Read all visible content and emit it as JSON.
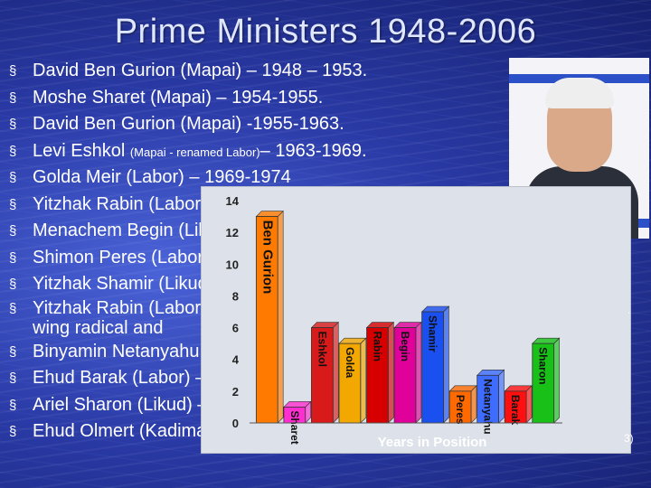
{
  "slide": {
    "title": "Prime Ministers 1948-2006",
    "bullet_marker": "§",
    "bullets": [
      {
        "main": "David Ben Gurion (Mapai) – 1948 – 1953.",
        "small": "",
        "after": ""
      },
      {
        "main": "Moshe Sharet (Mapai) – 1954-1955.",
        "small": "",
        "after": ""
      },
      {
        "main": "David Ben Gurion (Mapai) -1955-1963.",
        "small": "",
        "after": ""
      },
      {
        "main": "Levi Eshkol ",
        "small": "(Mapai - renamed Labor)",
        "after": "– 1963-1969."
      },
      {
        "main": "Golda Meir (Labor) – 1969-1974",
        "small": "",
        "after": ""
      },
      {
        "main": "Yitzhak Rabin (Labor) – 1974-1977",
        "small": "",
        "after": ""
      },
      {
        "main": "Menachem Begin (Likud) – 1977-1983",
        "small": "",
        "after": ""
      },
      {
        "main": "Shimon Peres (Labor) – 1984-1986",
        "small": "",
        "after": ""
      },
      {
        "main": "Yitzhak Shamir (Likud) – 1986-1992",
        "small": "",
        "after": ""
      },
      {
        "main": "Yitzhak Rabin (Labor) – 1992-1995 – assassinated by a right",
        "small": "",
        "after": ""
      },
      {
        "main": "Binyamin Netanyahu (Likud) – 1996-1999",
        "small": "",
        "after": ""
      },
      {
        "main": "Ehud Barak (Labor) – 1999-2001",
        "small": "",
        "after": ""
      },
      {
        "main": "Ariel Sharon (Likud) – 2001-2006",
        "small": "",
        "after": ""
      },
      {
        "main": "Ehud Olmert (Kadima) – 2006",
        "small": "",
        "after": ""
      }
    ],
    "bullet10_continuation": "wing radical and",
    "photo_caption": "Ariel Sharon portrait",
    "right_edge_fragment": ".",
    "right_edge_fragment2": "3)"
  },
  "chart_data": {
    "type": "bar",
    "categories": [
      "Ben Gurion",
      "Sharet",
      "Eshkol",
      "Golda",
      "Rabin",
      "Begin",
      "Shamir",
      "Peres",
      "Netanyahu",
      "Barak",
      "Sharon"
    ],
    "values": [
      13,
      1,
      6,
      5,
      6,
      6,
      7,
      2,
      3,
      2,
      5
    ],
    "colors": [
      "#ff7a00",
      "#ff2ed0",
      "#d81a1a",
      "#f2a800",
      "#d60000",
      "#e0009a",
      "#1a4ff0",
      "#ff6a00",
      "#3d6cff",
      "#ff1010",
      "#18c018"
    ],
    "yticks": [
      "0",
      "2",
      "4",
      "6",
      "8",
      "10",
      "12",
      "14"
    ],
    "ylim": [
      0,
      14
    ],
    "xlabel": "Years in Position",
    "ylabel": "",
    "grid": false,
    "legend": "none"
  }
}
